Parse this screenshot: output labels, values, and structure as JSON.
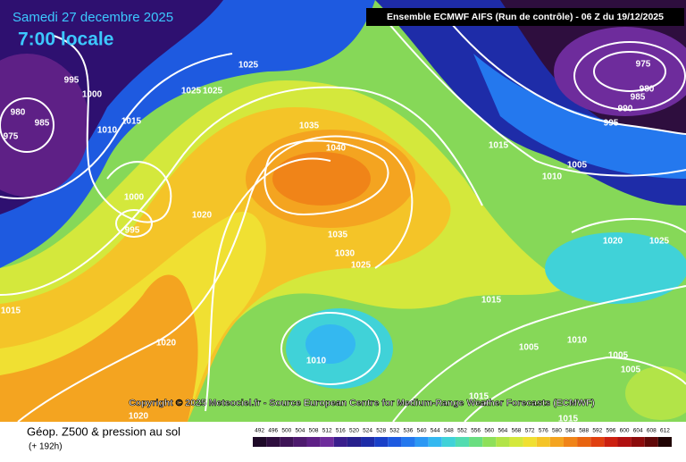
{
  "header": {
    "date": "Samedi 27 decembre 2025",
    "time": "7:00 locale",
    "model": "Ensemble ECMWF AIFS  (Run de contrôle)  - 06 Z du 19/12/2025"
  },
  "copyright": "Copyright © 2025 Meteociel.fr - Source European Centre for Medium-Range Weather Forecasts (ECMWF)",
  "footer": {
    "title": "Géop. Z500 & pression au sol",
    "subtitle": "(+ 192h)"
  },
  "isobar_labels": [
    975,
    980,
    985,
    990,
    995,
    1005,
    1010,
    1015,
    1020,
    1025,
    1025,
    1025,
    1025,
    995,
    1000,
    1015,
    1010,
    980,
    985,
    975,
    1000,
    995,
    1020,
    1035,
    1040,
    1035,
    1030,
    1025,
    1015,
    1020,
    1010,
    1015,
    1005,
    1010,
    1005,
    1005,
    1015,
    1015,
    1020
  ],
  "colorbar": {
    "levels": [
      492,
      496,
      500,
      504,
      508,
      512,
      516,
      520,
      524,
      528,
      532,
      536,
      540,
      544,
      548,
      552,
      556,
      560,
      564,
      568,
      572,
      576,
      580,
      584,
      588,
      592,
      596,
      600,
      604,
      608,
      612
    ],
    "colors": [
      "#1e0a28",
      "#2e0e3e",
      "#3e1456",
      "#4e1a6e",
      "#5e2086",
      "#6e2c9c",
      "#3a1e8c",
      "#28208c",
      "#1e2ca8",
      "#1a40c8",
      "#1e5ae0",
      "#2478ee",
      "#2c98f4",
      "#34b8f0",
      "#40d2d8",
      "#52dcb0",
      "#6ade80",
      "#8ee05a",
      "#b2e448",
      "#d4e83c",
      "#f0e032",
      "#f4c428",
      "#f4a420",
      "#f08418",
      "#e86410",
      "#e04010",
      "#cc2010",
      "#b01010",
      "#8c0c0c",
      "#600808",
      "#200404"
    ]
  }
}
